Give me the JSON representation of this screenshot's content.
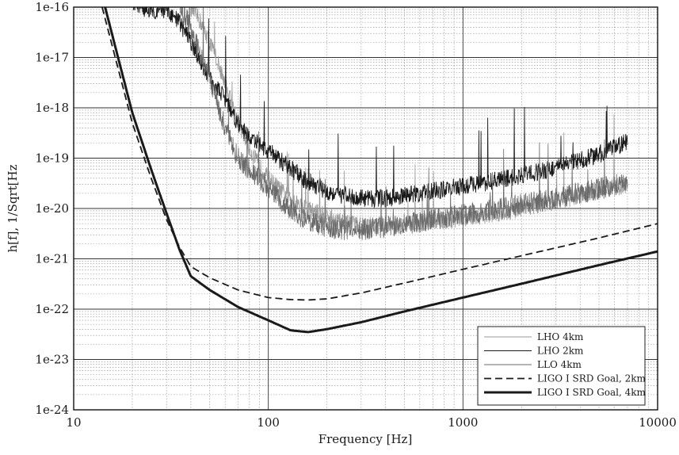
{
  "chart_data": {
    "type": "line",
    "title": "",
    "xlabel": "Frequency [Hz]",
    "ylabel": "h[f], 1/Sqrt[Hz",
    "x_scale": "log",
    "y_scale": "log",
    "xlim": [
      10,
      10000
    ],
    "ylim": [
      1e-24,
      1e-16
    ],
    "x_ticks": [
      {
        "value": 10,
        "label": "10"
      },
      {
        "value": 100,
        "label": "100"
      },
      {
        "value": 1000,
        "label": "1000"
      },
      {
        "value": 10000,
        "label": "10000"
      }
    ],
    "y_ticks": [
      {
        "value": 1e-24,
        "label": "1e-24"
      },
      {
        "value": 1e-23,
        "label": "1e-23"
      },
      {
        "value": 1e-22,
        "label": "1e-22"
      },
      {
        "value": 1e-21,
        "label": "1e-21"
      },
      {
        "value": 1e-20,
        "label": "1e-20"
      },
      {
        "value": 1e-19,
        "label": "1e-19"
      },
      {
        "value": 1e-18,
        "label": "1e-18"
      },
      {
        "value": 1e-17,
        "label": "1e-17"
      },
      {
        "value": 1e-16,
        "label": "1e-16"
      }
    ],
    "grid": true,
    "legend_position": "bottom-right",
    "series": [
      {
        "name": "LHO 4km",
        "style": "thin-noisy",
        "color": "#9a9a9a",
        "x": [
          40,
          45,
          50,
          55,
          60,
          65,
          70,
          80,
          90,
          100,
          120,
          150,
          180,
          200,
          250,
          300,
          400,
          500,
          700,
          1000,
          1500,
          2000,
          3000,
          4000,
          5000,
          6000,
          7000
        ],
        "y": [
          1e-16,
          5e-17,
          2e-17,
          8e-18,
          3e-18,
          1.2e-18,
          5e-19,
          1.5e-19,
          7e-20,
          4e-20,
          2e-20,
          1.1e-20,
          8e-21,
          7e-21,
          5e-21,
          4.5e-21,
          4.5e-21,
          4.8e-21,
          5.5e-21,
          6.5e-21,
          8e-21,
          1e-20,
          1.4e-20,
          1.8e-20,
          2.2e-20,
          2.6e-20,
          3e-20
        ]
      },
      {
        "name": "LHO 2km",
        "style": "thin-noisy",
        "color": "#1a1a1a",
        "x": [
          20,
          25,
          30,
          35,
          40,
          45,
          50,
          60,
          70,
          80,
          100,
          120,
          150,
          200,
          250,
          300,
          400,
          500,
          700,
          1000,
          1500,
          2000,
          3000,
          4000,
          5000,
          6000,
          7000
        ],
        "y": [
          1e-16,
          9e-17,
          8e-17,
          5e-17,
          2e-17,
          8e-18,
          4e-18,
          1.5e-18,
          5e-19,
          2.5e-19,
          1.4e-19,
          8e-20,
          4e-20,
          2.2e-20,
          1.8e-20,
          1.6e-20,
          1.6e-20,
          1.8e-20,
          2.2e-20,
          2.8e-20,
          3.6e-20,
          4.5e-20,
          6.5e-20,
          9e-20,
          1.2e-19,
          1.6e-19,
          2.2e-19
        ]
      },
      {
        "name": "LLO 4km",
        "style": "thin-noisy",
        "color": "#6a6a6a",
        "x": [
          35,
          40,
          45,
          50,
          55,
          60,
          65,
          70,
          80,
          90,
          100,
          120,
          150,
          200,
          250,
          300,
          400,
          500,
          700,
          1000,
          1500,
          2000,
          3000,
          4000,
          5000,
          6000,
          7000
        ],
        "y": [
          1e-16,
          4e-17,
          1e-17,
          4e-18,
          1.2e-18,
          4e-19,
          1.8e-19,
          1e-19,
          6e-20,
          4e-20,
          2.5e-20,
          1.2e-20,
          6.5e-21,
          4.2e-21,
          3.8e-21,
          3.8e-21,
          4.3e-21,
          5e-21,
          6e-21,
          7.5e-21,
          9.5e-21,
          1.2e-20,
          1.6e-20,
          2e-20,
          2.5e-20,
          3e-20,
          3.5e-20
        ]
      },
      {
        "name": "LIGO I SRD Goal, 2km",
        "style": "dashed",
        "color": "#1a1a1a",
        "x": [
          14,
          20,
          25,
          30,
          35,
          40,
          50,
          70,
          100,
          130,
          160,
          200,
          300,
          500,
          1000,
          2000,
          5000,
          10000
        ],
        "y": [
          1e-16,
          5e-19,
          4e-20,
          6e-21,
          1.7e-21,
          7e-22,
          4.2e-22,
          2.4e-22,
          1.7e-22,
          1.55e-22,
          1.52e-22,
          1.6e-22,
          2.1e-22,
          3.3e-22,
          6.2e-22,
          1.15e-21,
          2.6e-21,
          5e-21
        ]
      },
      {
        "name": "LIGO I SRD Goal, 4km",
        "style": "thick",
        "color": "#1a1a1a",
        "x": [
          14.5,
          20,
          25,
          30,
          35,
          40,
          50,
          70,
          100,
          130,
          160,
          200,
          300,
          500,
          1000,
          2000,
          5000,
          10000
        ],
        "y": [
          1e-16,
          8e-19,
          6e-20,
          8e-21,
          1.5e-21,
          4.5e-22,
          2.4e-22,
          1.1e-22,
          6e-23,
          3.8e-23,
          3.5e-23,
          4e-23,
          5.5e-23,
          9e-23,
          1.7e-22,
          3.2e-22,
          7.5e-22,
          1.4e-21
        ]
      }
    ]
  }
}
